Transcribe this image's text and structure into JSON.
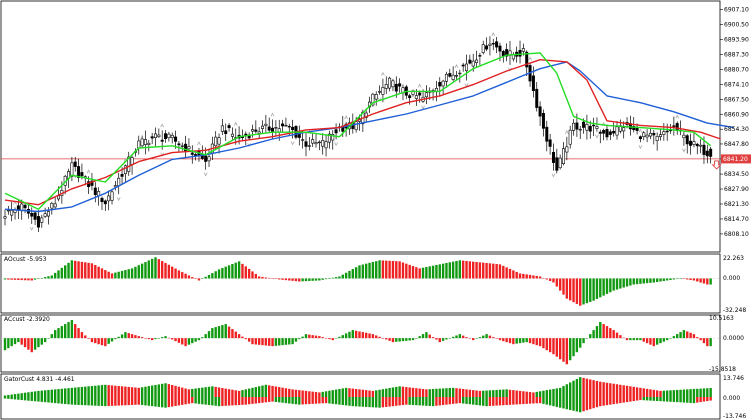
{
  "colors": {
    "background": "#ffffff",
    "frame": "#000000",
    "candle": "#000000",
    "fractal": "#a9a9a9",
    "jaw": "#1f5fd6",
    "teeth": "#e02020",
    "lips": "#22dd22",
    "bar_up": "#119911",
    "bar_down": "#ee2222",
    "current_price": "#e04040",
    "arrow": "#e04040"
  },
  "chart_data": [
    {
      "type": "candlestick",
      "title": "",
      "ylim": [
        6801.0,
        6910.0
      ],
      "y_ticks": [
        6808.1,
        6814.7,
        6821.3,
        6827.9,
        6834.5,
        6841.2,
        6847.8,
        6854.3,
        6860.9,
        6867.5,
        6874.1,
        6880.7,
        6887.3,
        6893.9,
        6900.5,
        6907.1
      ],
      "y_tick_labels": [
        "6808.10",
        "6814.70",
        "6821.30",
        "6827.90",
        "6834.50",
        "6841.20",
        "6847.80",
        "6854.30",
        "6860.90",
        "6867.50",
        "6874.10",
        "6880.70",
        "6887.30",
        "6893.90",
        "6900.50",
        "6907.10"
      ],
      "current_price": 6841.2,
      "current_price_label": "6841.20",
      "close_anchors": [
        [
          0,
          6817
        ],
        [
          5,
          6820
        ],
        [
          10,
          6813
        ],
        [
          15,
          6822
        ],
        [
          20,
          6838
        ],
        [
          25,
          6830
        ],
        [
          30,
          6822
        ],
        [
          35,
          6835
        ],
        [
          40,
          6848
        ],
        [
          45,
          6851
        ],
        [
          50,
          6850
        ],
        [
          55,
          6845
        ],
        [
          60,
          6840
        ],
        [
          65,
          6855
        ],
        [
          70,
          6850
        ],
        [
          75,
          6854
        ],
        [
          80,
          6855
        ],
        [
          85,
          6855
        ],
        [
          90,
          6848
        ],
        [
          95,
          6848
        ],
        [
          100,
          6855
        ],
        [
          105,
          6856
        ],
        [
          110,
          6868
        ],
        [
          115,
          6875
        ],
        [
          120,
          6870
        ],
        [
          125,
          6868
        ],
        [
          130,
          6875
        ],
        [
          135,
          6880
        ],
        [
          140,
          6885
        ],
        [
          145,
          6893
        ],
        [
          150,
          6887
        ],
        [
          155,
          6888
        ],
        [
          160,
          6860
        ],
        [
          165,
          6836
        ],
        [
          170,
          6856
        ],
        [
          175,
          6855
        ],
        [
          180,
          6852
        ],
        [
          185,
          6856
        ],
        [
          190,
          6852
        ],
        [
          195,
          6850
        ],
        [
          200,
          6855
        ],
        [
          205,
          6848
        ],
        [
          210,
          6844
        ]
      ],
      "series": [
        {
          "name": "Jaw",
          "values": [
            [
              0,
              6819
            ],
            [
              10,
              6818
            ],
            [
              20,
              6820
            ],
            [
              30,
              6826
            ],
            [
              40,
              6834
            ],
            [
              50,
              6841
            ],
            [
              60,
              6843
            ],
            [
              70,
              6846
            ],
            [
              80,
              6850
            ],
            [
              90,
              6853
            ],
            [
              100,
              6855
            ],
            [
              110,
              6858
            ],
            [
              120,
              6861
            ],
            [
              130,
              6865
            ],
            [
              140,
              6869
            ],
            [
              150,
              6875
            ],
            [
              160,
              6881
            ],
            [
              168,
              6884
            ],
            [
              172,
              6880
            ],
            [
              180,
              6869
            ],
            [
              190,
              6866
            ],
            [
              200,
              6862
            ],
            [
              210,
              6857
            ],
            [
              218,
              6855
            ]
          ]
        },
        {
          "name": "Teeth",
          "values": [
            [
              0,
              6823
            ],
            [
              10,
              6821
            ],
            [
              20,
              6828
            ],
            [
              30,
              6833
            ],
            [
              40,
              6840
            ],
            [
              50,
              6844
            ],
            [
              60,
              6845
            ],
            [
              70,
              6849
            ],
            [
              80,
              6851
            ],
            [
              90,
              6854
            ],
            [
              100,
              6855
            ],
            [
              110,
              6861
            ],
            [
              120,
              6866
            ],
            [
              130,
              6869
            ],
            [
              140,
              6874
            ],
            [
              150,
              6880
            ],
            [
              160,
              6885
            ],
            [
              168,
              6884
            ],
            [
              174,
              6876
            ],
            [
              180,
              6858
            ],
            [
              190,
              6856
            ],
            [
              200,
              6855
            ],
            [
              208,
              6853
            ],
            [
              214,
              6850
            ]
          ]
        },
        {
          "name": "Lips",
          "values": [
            [
              0,
              6826
            ],
            [
              10,
              6819
            ],
            [
              20,
              6834
            ],
            [
              30,
              6831
            ],
            [
              40,
              6846
            ],
            [
              50,
              6847
            ],
            [
              60,
              6843
            ],
            [
              70,
              6851
            ],
            [
              80,
              6853
            ],
            [
              90,
              6853
            ],
            [
              100,
              6851
            ],
            [
              110,
              6866
            ],
            [
              120,
              6871
            ],
            [
              130,
              6871
            ],
            [
              140,
              6881
            ],
            [
              150,
              6887
            ],
            [
              160,
              6888
            ],
            [
              165,
              6879
            ],
            [
              170,
              6860
            ],
            [
              175,
              6857
            ],
            [
              180,
              6856
            ],
            [
              190,
              6855
            ],
            [
              200,
              6854
            ],
            [
              206,
              6853
            ],
            [
              211,
              6847
            ]
          ]
        }
      ]
    },
    {
      "type": "bar",
      "title": "AOcust -5.953",
      "ylim": [
        -32.248,
        22.263
      ],
      "y_tick_labels": [
        "22.263",
        "0.000",
        "-32.248"
      ],
      "anchors": [
        [
          0,
          -1
        ],
        [
          8,
          -2
        ],
        [
          14,
          3
        ],
        [
          20,
          18
        ],
        [
          26,
          15
        ],
        [
          32,
          5
        ],
        [
          38,
          10
        ],
        [
          45,
          21
        ],
        [
          52,
          8
        ],
        [
          58,
          -2
        ],
        [
          64,
          9
        ],
        [
          70,
          17
        ],
        [
          76,
          2
        ],
        [
          82,
          -1
        ],
        [
          88,
          -3
        ],
        [
          94,
          -2
        ],
        [
          100,
          2
        ],
        [
          106,
          13
        ],
        [
          112,
          18
        ],
        [
          118,
          17
        ],
        [
          124,
          10
        ],
        [
          130,
          14
        ],
        [
          136,
          18
        ],
        [
          142,
          16
        ],
        [
          148,
          14
        ],
        [
          154,
          5
        ],
        [
          160,
          2
        ],
        [
          164,
          -4
        ],
        [
          168,
          -20
        ],
        [
          172,
          -27
        ],
        [
          176,
          -22
        ],
        [
          182,
          -12
        ],
        [
          188,
          -6
        ],
        [
          194,
          -4
        ],
        [
          198,
          -2
        ],
        [
          202,
          0
        ],
        [
          206,
          -2
        ],
        [
          210,
          -6
        ]
      ]
    },
    {
      "type": "bar",
      "title": "ACcust -2.3920",
      "ylim": [
        -15.8518,
        10.5163
      ],
      "y_tick_labels": [
        "10.5163",
        "0.0000",
        "-15.8518"
      ],
      "anchors": [
        [
          0,
          -6
        ],
        [
          4,
          -2
        ],
        [
          8,
          -7
        ],
        [
          12,
          -2
        ],
        [
          15,
          4
        ],
        [
          20,
          9
        ],
        [
          23,
          3
        ],
        [
          26,
          -2
        ],
        [
          30,
          -4
        ],
        [
          36,
          3
        ],
        [
          40,
          1
        ],
        [
          44,
          -1
        ],
        [
          48,
          1
        ],
        [
          54,
          -4
        ],
        [
          58,
          -1
        ],
        [
          62,
          5
        ],
        [
          66,
          7
        ],
        [
          70,
          2
        ],
        [
          74,
          -3
        ],
        [
          80,
          -4
        ],
        [
          86,
          -3
        ],
        [
          90,
          2
        ],
        [
          94,
          1
        ],
        [
          98,
          -1
        ],
        [
          104,
          4
        ],
        [
          110,
          2
        ],
        [
          116,
          -2
        ],
        [
          122,
          -1
        ],
        [
          126,
          3
        ],
        [
          130,
          -2
        ],
        [
          136,
          2
        ],
        [
          140,
          -1
        ],
        [
          144,
          2
        ],
        [
          148,
          -1
        ],
        [
          152,
          -3
        ],
        [
          156,
          -2
        ],
        [
          160,
          -4
        ],
        [
          164,
          -8
        ],
        [
          168,
          -13
        ],
        [
          171,
          -7
        ],
        [
          175,
          2
        ],
        [
          178,
          8
        ],
        [
          182,
          4
        ],
        [
          186,
          -1
        ],
        [
          190,
          -1
        ],
        [
          194,
          -4
        ],
        [
          198,
          -1
        ],
        [
          200,
          1
        ],
        [
          203,
          4
        ],
        [
          206,
          2
        ],
        [
          210,
          -4
        ]
      ]
    },
    {
      "type": "bar",
      "title": "GatorCust 4.831 -4.461",
      "ylim": [
        -13.746,
        13.746
      ],
      "y_tick_labels": [
        "13.746",
        "0.000",
        "-13.746"
      ],
      "upper_anchors": [
        [
          0,
          1
        ],
        [
          10,
          4
        ],
        [
          20,
          6
        ],
        [
          30,
          8
        ],
        [
          40,
          6
        ],
        [
          48,
          9
        ],
        [
          55,
          5
        ],
        [
          62,
          7
        ],
        [
          70,
          4
        ],
        [
          78,
          8
        ],
        [
          86,
          5
        ],
        [
          94,
          3
        ],
        [
          102,
          6
        ],
        [
          110,
          4
        ],
        [
          118,
          7
        ],
        [
          126,
          5
        ],
        [
          134,
          6
        ],
        [
          142,
          4
        ],
        [
          150,
          5
        ],
        [
          158,
          3
        ],
        [
          166,
          6
        ],
        [
          172,
          13
        ],
        [
          178,
          10
        ],
        [
          184,
          8
        ],
        [
          190,
          6
        ],
        [
          196,
          4
        ],
        [
          204,
          5
        ],
        [
          212,
          6
        ]
      ],
      "lower_anchors": [
        [
          0,
          -1
        ],
        [
          10,
          -3
        ],
        [
          20,
          -5
        ],
        [
          30,
          -6
        ],
        [
          40,
          -5
        ],
        [
          48,
          -7
        ],
        [
          56,
          -4
        ],
        [
          64,
          -6
        ],
        [
          72,
          -5
        ],
        [
          80,
          -3
        ],
        [
          88,
          -5
        ],
        [
          96,
          -4
        ],
        [
          104,
          -6
        ],
        [
          112,
          -7
        ],
        [
          120,
          -5
        ],
        [
          128,
          -6
        ],
        [
          136,
          -4
        ],
        [
          144,
          -6
        ],
        [
          152,
          -5
        ],
        [
          160,
          -4
        ],
        [
          166,
          -7
        ],
        [
          172,
          -10
        ],
        [
          178,
          -6
        ],
        [
          184,
          -4
        ],
        [
          190,
          -2
        ],
        [
          198,
          -3
        ],
        [
          206,
          -4
        ],
        [
          212,
          -2
        ]
      ]
    }
  ]
}
